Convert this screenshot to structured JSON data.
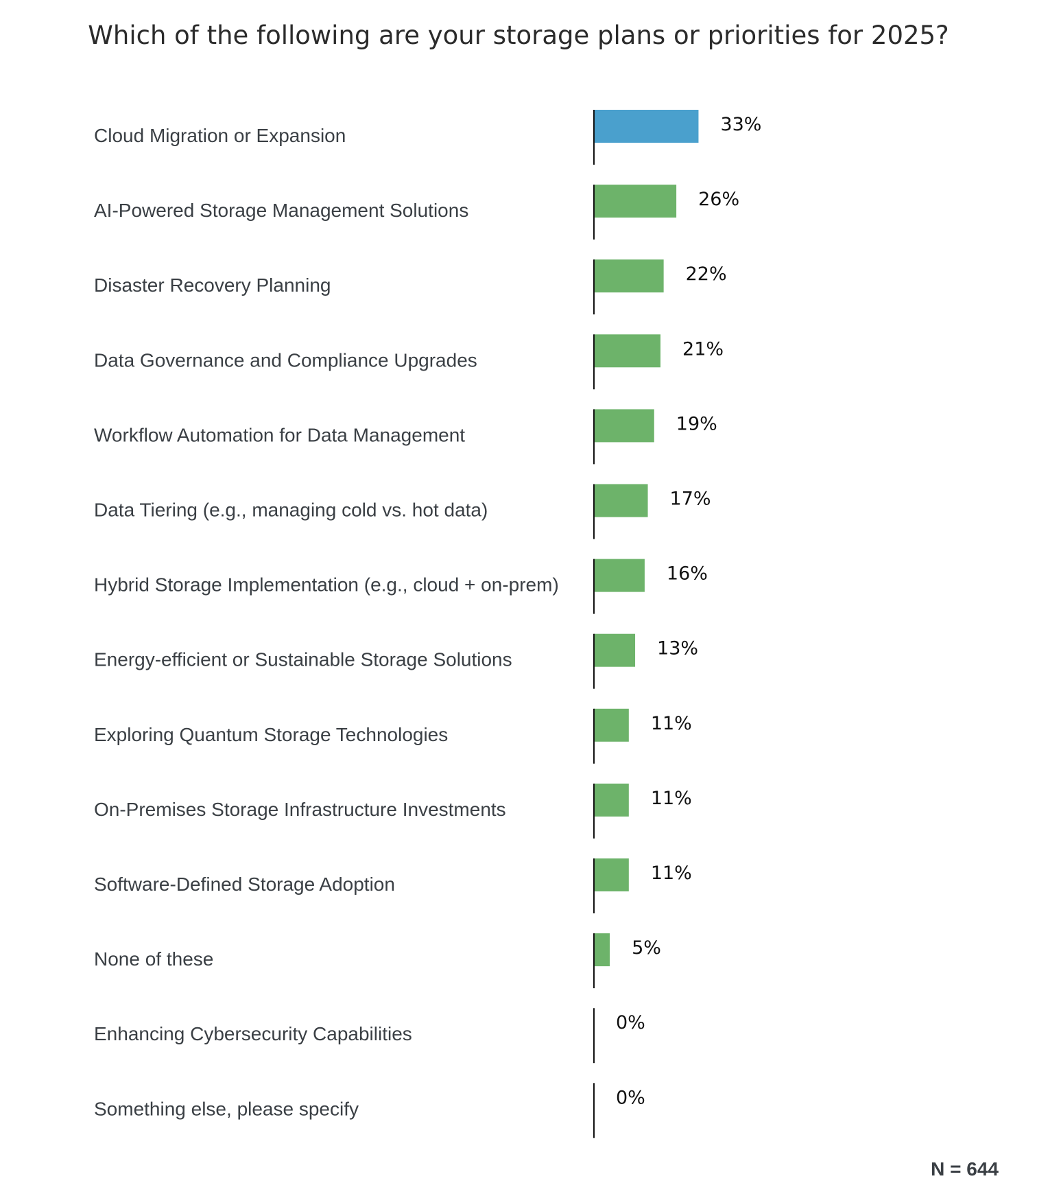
{
  "chart_data": {
    "type": "bar",
    "orientation": "horizontal",
    "title": "Which of the following are your storage plans or priorities for 2025?",
    "categories": [
      "Cloud Migration or Expansion",
      "AI-Powered Storage Management Solutions",
      "Disaster Recovery Planning",
      "Data Governance and Compliance Upgrades",
      "Workflow Automation for Data Management",
      "Data Tiering (e.g., managing cold vs. hot data)",
      "Hybrid Storage Implementation (e.g., cloud + on-prem)",
      "Energy-efficient or Sustainable Storage Solutions",
      "Exploring Quantum Storage Technologies",
      "On-Premises Storage Infrastructure Investments",
      "Software-Defined Storage Adoption",
      "None of these",
      "Enhancing Cybersecurity Capabilities",
      "Something else, please specify"
    ],
    "values": [
      33,
      26,
      22,
      21,
      19,
      17,
      16,
      13,
      11,
      11,
      11,
      5,
      0,
      0
    ],
    "value_labels": [
      "33%",
      "26%",
      "22%",
      "21%",
      "19%",
      "17%",
      "16%",
      "13%",
      "11%",
      "11%",
      "11%",
      "5%",
      "0%",
      "0%"
    ],
    "unit": "%",
    "highlight_index": 0,
    "colors": {
      "highlight": "#4aa0cd",
      "default": "#6db36a",
      "axis": "#111111"
    },
    "grid": false,
    "note": "N = 644"
  }
}
